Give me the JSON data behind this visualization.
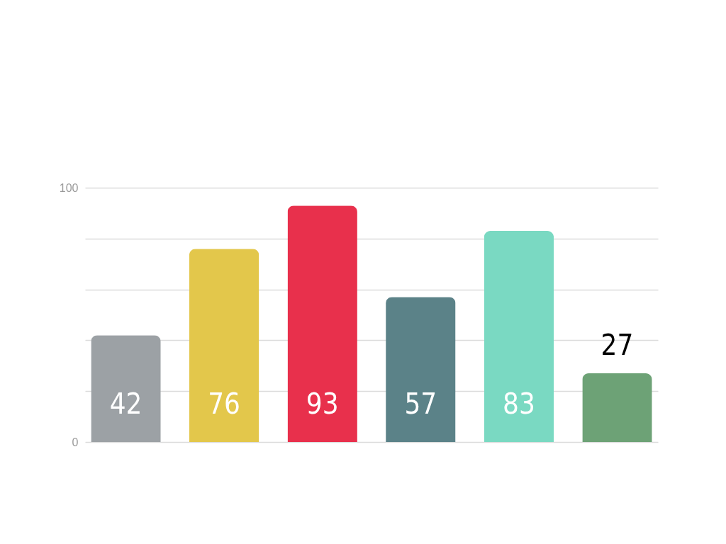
{
  "chart_data": {
    "type": "bar",
    "categories": [
      null,
      null,
      null,
      null,
      null,
      null
    ],
    "values": [
      42,
      76,
      93,
      57,
      83,
      27
    ],
    "colors": [
      "#9ca1a5",
      "#e3c74b",
      "#e8304c",
      "#5b8288",
      "#7ad9c2",
      "#6da276"
    ],
    "ylim": [
      0,
      100
    ],
    "yticks": [
      0,
      {
        "value": 20,
        "label": null
      },
      {
        "value": 40,
        "label": null
      },
      {
        "value": 60,
        "label": null
      },
      {
        "value": 80,
        "label": null
      },
      100
    ],
    "grid": "y",
    "data_labels": true
  }
}
